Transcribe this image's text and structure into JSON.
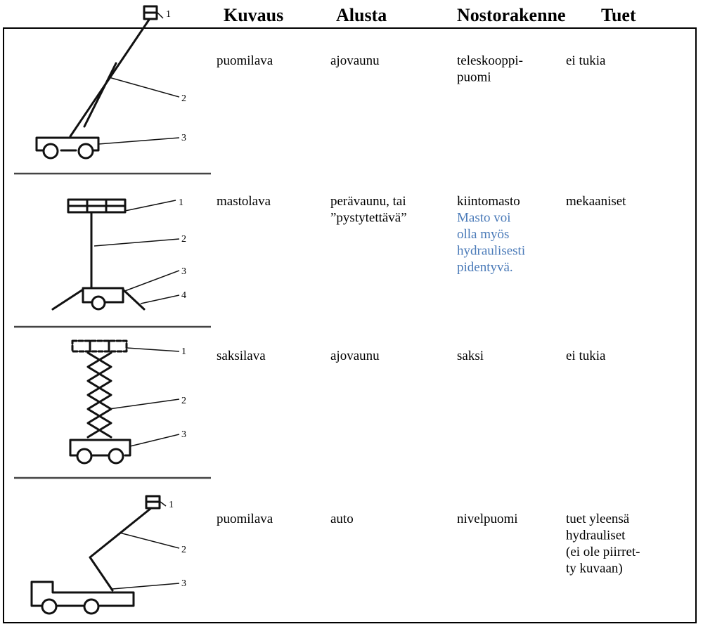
{
  "table": {
    "headers": [
      "Kuvaus",
      "Alusta",
      "Nostorakenne",
      "Tuet"
    ],
    "rows": [
      {
        "cells": [
          [
            "puomilava"
          ],
          [
            "ajovaunu"
          ],
          [
            "teleskooppi-",
            "puomi"
          ],
          [
            "ei tukia"
          ]
        ],
        "labels": [
          "1",
          "2",
          "3"
        ]
      },
      {
        "cells": [
          [
            "mastolava"
          ],
          [
            "perävaunu, tai",
            "”pystytettävä”"
          ],
          [
            "kiintomasto"
          ],
          [
            "mekaaniset"
          ]
        ],
        "note": [
          "Masto voi",
          "olla myös",
          "hydraulisesti",
          "pidentyvä."
        ],
        "labels": [
          "1",
          "2",
          "3",
          "4"
        ]
      },
      {
        "cells": [
          [
            "saksilava"
          ],
          [
            "ajovaunu"
          ],
          [
            "saksi"
          ],
          [
            "ei tukia"
          ]
        ],
        "labels": [
          "1",
          "2",
          "3"
        ]
      },
      {
        "cells": [
          [
            "puomilava"
          ],
          [
            "auto"
          ],
          [
            "nivelpuomi"
          ],
          [
            "tuet yleensä",
            "hydrauliset",
            "(ei ole piirret-",
            "ty kuvaan)"
          ]
        ],
        "labels": [
          "1",
          "2",
          "3"
        ]
      }
    ]
  }
}
